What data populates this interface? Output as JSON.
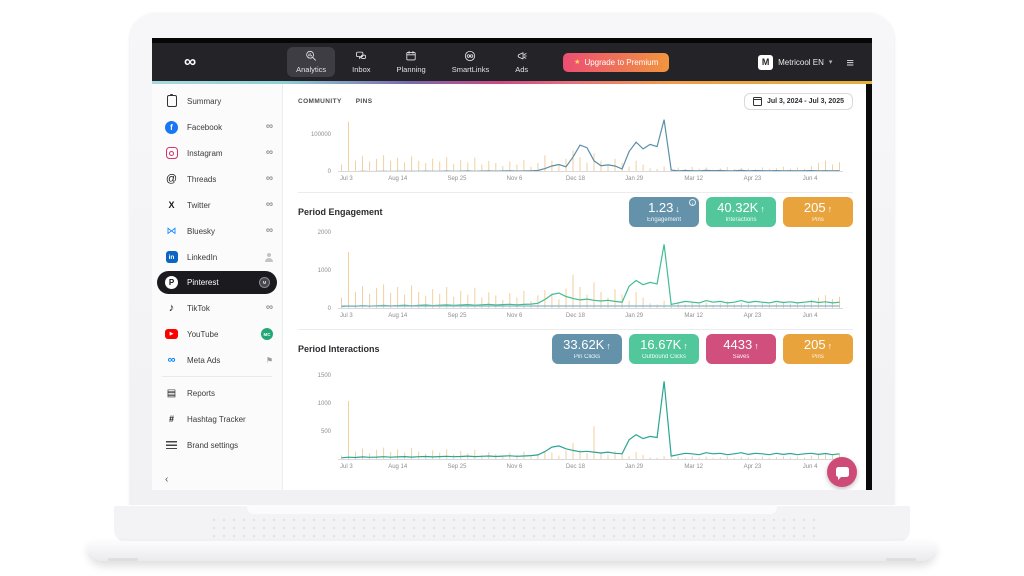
{
  "navbar": {
    "logo_icon": "metricool-infinity-logo",
    "tabs": [
      {
        "label": "Analytics",
        "icon": "analytics-search-icon",
        "active": true
      },
      {
        "label": "Inbox",
        "icon": "inbox-chat-icon",
        "active": false
      },
      {
        "label": "Planning",
        "icon": "planning-calendar-icon",
        "active": false
      },
      {
        "label": "SmartLinks",
        "icon": "smartlinks-icon",
        "active": false
      },
      {
        "label": "Ads",
        "icon": "ads-megaphone-icon",
        "active": false
      }
    ],
    "upgrade_button": {
      "label": "Upgrade to Premium",
      "icon": "sparkle-icon"
    },
    "account": {
      "name": "Metricool EN",
      "avatar_text": "M"
    },
    "menu_icon": "hamburger-menu-icon"
  },
  "sidebar": {
    "youtube_badge_text": "MC",
    "items": [
      {
        "label": "Summary",
        "icon": "summary",
        "right": null,
        "active": false
      },
      {
        "label": "Facebook",
        "icon": "facebook",
        "right": "infinity",
        "active": false
      },
      {
        "label": "Instagram",
        "icon": "instagram",
        "right": "infinity",
        "active": false
      },
      {
        "label": "Threads",
        "icon": "threads",
        "right": "infinity",
        "active": false
      },
      {
        "label": "Twitter",
        "icon": "twitter",
        "right": "infinity",
        "active": false
      },
      {
        "label": "Bluesky",
        "icon": "bluesky",
        "right": "infinity",
        "active": false
      },
      {
        "label": "LinkedIn",
        "icon": "linkedin",
        "right": "person",
        "active": false
      },
      {
        "label": "Pinterest",
        "icon": "pinterest",
        "right": "badge",
        "active": true
      },
      {
        "label": "TikTok",
        "icon": "tiktok",
        "right": "infinity",
        "active": false
      },
      {
        "label": "YouTube",
        "icon": "youtube",
        "right": "mc-badge",
        "active": false
      },
      {
        "label": "Meta Ads",
        "icon": "meta",
        "right": "flag",
        "active": false,
        "divider_after": true
      },
      {
        "label": "Reports",
        "icon": "reports",
        "right": null,
        "active": false
      },
      {
        "label": "Hashtag Tracker",
        "icon": "hashtag",
        "right": null,
        "active": false
      },
      {
        "label": "Brand settings",
        "icon": "brand-settings",
        "right": null,
        "active": false
      }
    ],
    "collapse_icon": "chevron-left"
  },
  "main": {
    "tabs": [
      "COMMUNITY",
      "PINS"
    ],
    "date_range": "Jul 3, 2024 - Jul 3, 2025",
    "sections": [
      {
        "title": "Period Engagement",
        "cards": [
          {
            "value": "1.23",
            "arrow": "down",
            "label": "Engagement",
            "color": "#6492aa",
            "info": true
          },
          {
            "value": "40.32K",
            "arrow": "up",
            "label": "Interactions",
            "color": "#52c79b",
            "info": false
          },
          {
            "value": "205",
            "arrow": "up",
            "label": "Pins",
            "color": "#e8a33d",
            "info": false
          }
        ]
      },
      {
        "title": "Period Interactions",
        "cards": [
          {
            "value": "33.62K",
            "arrow": "up",
            "label": "Pin Clicks",
            "color": "#6492aa",
            "info": false
          },
          {
            "value": "16.67K",
            "arrow": "up",
            "label": "Outbound Clicks",
            "color": "#52c79b",
            "info": false
          },
          {
            "value": "4433",
            "arrow": "up",
            "label": "Saves",
            "color": "#d04f7c",
            "info": false
          },
          {
            "value": "205",
            "arrow": "up",
            "label": "Pins",
            "color": "#e8a33d",
            "info": false
          }
        ]
      }
    ]
  },
  "chat_button": {
    "icon": "chat-bubble-icon",
    "color": "#ce4b77"
  },
  "chart_data": [
    {
      "type": "bar-line-combo",
      "title": "Community / Pins overview",
      "x_ticks": [
        "Jul 3",
        "Aug 14",
        "Sep 25",
        "Nov 6",
        "Dec 18",
        "Jan 29",
        "Mar 12",
        "Apr 23",
        "Jun 4"
      ],
      "y_ticks": [
        {
          "label": "100000",
          "value": 100000
        },
        {
          "label": "0",
          "value": 0
        }
      ],
      "ymax": 150000,
      "grid": false,
      "series": [
        {
          "name": "pins-activity",
          "type": "bar",
          "color": "#f2cf9d",
          "values": [
            20000,
            135000,
            30000,
            42000,
            28000,
            35000,
            45000,
            30000,
            38000,
            26000,
            42000,
            30000,
            24000,
            36000,
            28000,
            40000,
            22000,
            32000,
            26000,
            38000,
            20000,
            30000,
            24000,
            16000,
            28000,
            20000,
            32000,
            14000,
            24000,
            45000,
            30000,
            18000,
            36000,
            58000,
            40000,
            25000,
            50000,
            30000,
            20000,
            35000,
            25000,
            15000,
            30000,
            20000,
            10000,
            8000,
            15000,
            10000,
            12000,
            8000,
            14000,
            9000,
            12000,
            7000,
            10000,
            13000,
            8000,
            11000,
            9000,
            7000,
            12000,
            8000,
            10000,
            14000,
            9000,
            12000,
            8000,
            16000,
            24000,
            30000,
            20000,
            26000
          ]
        },
        {
          "name": "community",
          "type": "line",
          "color": "#5b8fa8",
          "values": [
            800,
            1200,
            900,
            1500,
            1100,
            1400,
            1800,
            1300,
            1600,
            2000,
            1500,
            1800,
            2200,
            1700,
            2000,
            2400,
            1900,
            2200,
            2600,
            2000,
            2400,
            2800,
            2200,
            2600,
            3000,
            2400,
            2800,
            3200,
            4000,
            9000,
            16000,
            20000,
            14000,
            40000,
            72000,
            65000,
            30000,
            17000,
            19000,
            16000,
            8000,
            55000,
            80000,
            62000,
            74000,
            68000,
            140000,
            5000,
            3000,
            4000,
            3500,
            3000,
            4500,
            3500,
            4000,
            3000,
            3500,
            4500,
            3200,
            3800,
            3400,
            3000,
            3800,
            3200,
            3600,
            3000,
            3400,
            3800,
            3200,
            3600,
            3000,
            3400
          ]
        }
      ]
    },
    {
      "type": "bar-line-combo",
      "title": "Period Engagement",
      "x_ticks": [
        "Jul 3",
        "Aug 14",
        "Sep 25",
        "Nov 6",
        "Dec 18",
        "Jan 29",
        "Mar 12",
        "Apr 23",
        "Jun 4"
      ],
      "y_ticks": [
        {
          "label": "2000",
          "value": 2000
        },
        {
          "label": "1000",
          "value": 1000
        },
        {
          "label": "0",
          "value": 0
        }
      ],
      "ymax": 2000,
      "grid": false,
      "series": [
        {
          "name": "pins-activity",
          "type": "bar",
          "color": "#f2cf9d",
          "values": [
            300,
            1500,
            450,
            600,
            400,
            550,
            650,
            420,
            580,
            380,
            620,
            450,
            350,
            520,
            400,
            580,
            320,
            480,
            380,
            560,
            300,
            440,
            360,
            240,
            420,
            300,
            480,
            210,
            360,
            500,
            420,
            260,
            540,
            900,
            580,
            380,
            700,
            450,
            300,
            520,
            380,
            220,
            450,
            300,
            150,
            120,
            220,
            150,
            180,
            120,
            200,
            140,
            180,
            100,
            150,
            200,
            120,
            160,
            140,
            100,
            180,
            120,
            150,
            200,
            140,
            180,
            120,
            240,
            300,
            360,
            260,
            320
          ]
        },
        {
          "name": "interactions",
          "type": "line",
          "color": "#41bd92",
          "values": [
            60,
            80,
            70,
            90,
            75,
            85,
            95,
            80,
            90,
            100,
            85,
            95,
            105,
            90,
            100,
            110,
            95,
            105,
            115,
            100,
            110,
            120,
            105,
            115,
            125,
            110,
            120,
            130,
            150,
            250,
            380,
            420,
            330,
            280,
            240,
            260,
            230,
            210,
            230,
            200,
            180,
            600,
            750,
            640,
            700,
            660,
            1700,
            120,
            160,
            200,
            180,
            160,
            220,
            180,
            200,
            160,
            180,
            220,
            170,
            200,
            180,
            160,
            200,
            170,
            190,
            160,
            180,
            200,
            170,
            190,
            160,
            180
          ]
        },
        {
          "name": "engagement-baseline",
          "type": "line",
          "color": "#86b6c9",
          "constant": 80,
          "points": 72
        }
      ]
    },
    {
      "type": "bar-line-combo",
      "title": "Period Interactions",
      "x_ticks": [
        "Jul 3",
        "Aug 14",
        "Sep 25",
        "Nov 6",
        "Dec 18",
        "Jan 29",
        "Mar 12",
        "Apr 23",
        "Jun 4"
      ],
      "y_ticks": [
        {
          "label": "1500",
          "value": 1500
        },
        {
          "label": "1000",
          "value": 1000
        },
        {
          "label": "500",
          "value": 500
        }
      ],
      "ymax": 1600,
      "grid": false,
      "series": [
        {
          "name": "pins-activity",
          "type": "bar",
          "color": "#f2cf9d",
          "values": [
            80,
            1050,
            150,
            200,
            120,
            180,
            220,
            140,
            190,
            130,
            210,
            150,
            110,
            170,
            130,
            190,
            100,
            160,
            120,
            180,
            90,
            140,
            110,
            70,
            130,
            90,
            150,
            60,
            110,
            160,
            130,
            80,
            170,
            300,
            180,
            120,
            600,
            140,
            90,
            160,
            120,
            70,
            140,
            90,
            50,
            40,
            70,
            50,
            60,
            40,
            65,
            45,
            60,
            35,
            50,
            65,
            40,
            55,
            45,
            35,
            60,
            40,
            50,
            65,
            45,
            60,
            40,
            80,
            100,
            120,
            85,
            105
          ]
        },
        {
          "name": "pin-clicks",
          "type": "line",
          "color": "#2ba596",
          "values": [
            40,
            50,
            45,
            55,
            48,
            52,
            58,
            50,
            55,
            60,
            52,
            58,
            63,
            55,
            60,
            66,
            58,
            63,
            69,
            60,
            66,
            72,
            63,
            69,
            75,
            66,
            72,
            78,
            90,
            150,
            230,
            250,
            200,
            170,
            145,
            155,
            140,
            125,
            140,
            120,
            110,
            360,
            450,
            380,
            420,
            400,
            1400,
            70,
            95,
            120,
            110,
            95,
            130,
            110,
            120,
            95,
            110,
            130,
            100,
            120,
            110,
            95,
            120,
            100,
            115,
            95,
            110,
            120,
            100,
            115,
            95,
            110
          ]
        }
      ]
    }
  ]
}
